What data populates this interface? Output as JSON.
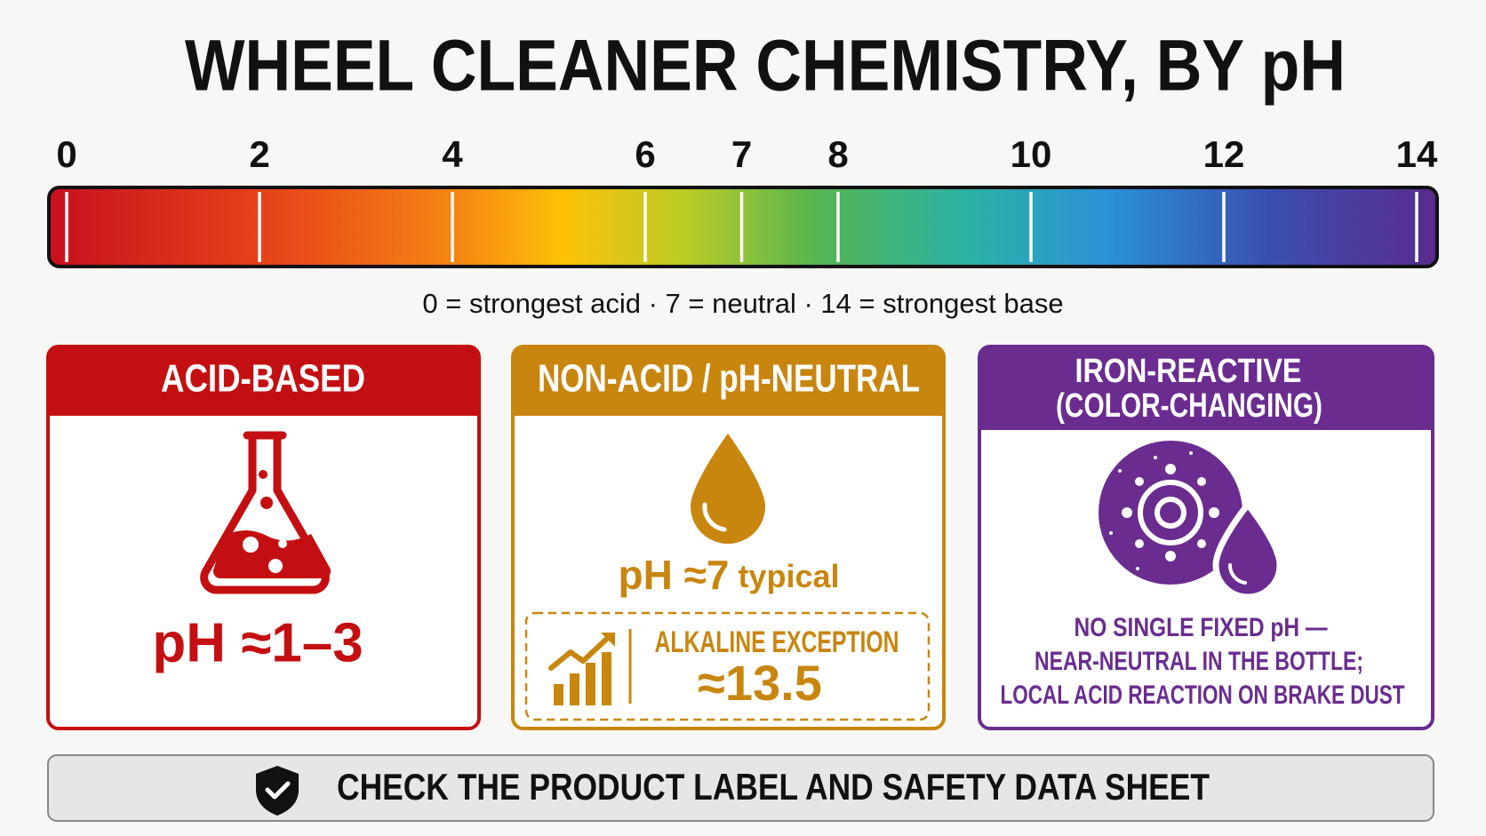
{
  "title": "WHEEL CLEANER CHEMISTRY, BY pH",
  "scale": {
    "ticks": [
      0,
      2,
      4,
      6,
      7,
      8,
      10,
      12,
      14
    ],
    "caption": "0 = strongest acid · 7 = neutral · 14 = strongest base"
  },
  "cards": [
    {
      "header": [
        "ACID-BASED"
      ],
      "text": "pH ≈1–3"
    },
    {
      "header": [
        "NON-ACID / pH-NEUTRAL"
      ],
      "text": "pH ≈7",
      "suffix": "typical",
      "exception": {
        "label": "ALKALINE EXCEPTION",
        "value": "≈13.5"
      }
    },
    {
      "header": [
        "IRON-REACTIVE",
        "(COLOR-CHANGING)"
      ],
      "note": [
        "NO SINGLE FIXED pH —",
        "NEAR-NEUTRAL IN THE BOTTLE;",
        "LOCAL ACID REACTION ON BRAKE DUST"
      ]
    }
  ],
  "footer": "CHECK THE PRODUCT LABEL AND SAFETY DATA SHEET"
}
